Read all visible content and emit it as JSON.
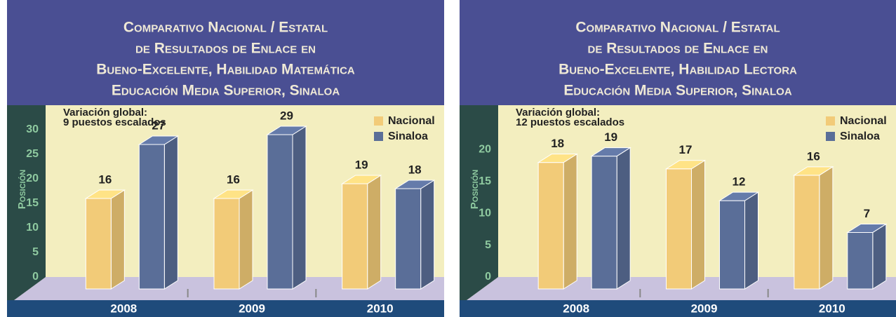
{
  "chart_data": [
    {
      "type": "bar3d",
      "title": [
        "Comparativo Nacional / Estatal",
        "de Resultados de Enlace en",
        "Bueno-Excelente, Habilidad Matemática",
        "Educación Media Superior, Sinaloa"
      ],
      "annotation": [
        "Variación global:",
        "9 puestos escalados"
      ],
      "y_label": "Posición",
      "categories": [
        "2008",
        "2009",
        "2010"
      ],
      "series": [
        {
          "name": "Nacional",
          "color": "#f2cb78",
          "values": [
            16,
            16,
            19
          ]
        },
        {
          "name": "Sinaloa",
          "color": "#5a6e98",
          "values": [
            27,
            29,
            18
          ]
        }
      ],
      "ylim": [
        0,
        35
      ],
      "yticks": [
        0,
        5,
        10,
        15,
        20,
        25,
        30
      ],
      "legend": "top-right"
    },
    {
      "type": "bar3d",
      "title": [
        "Comparativo Nacional / Estatal",
        "de Resultados de Enlace en",
        "Bueno-Excelente, Habilidad Lectora",
        "Educación Media Superior, Sinaloa"
      ],
      "annotation": [
        "Variación global:",
        "12 puestos escalados"
      ],
      "y_label": "Posición",
      "categories": [
        "2008",
        "2009",
        "2010"
      ],
      "series": [
        {
          "name": "Nacional",
          "color": "#f2cb78",
          "values": [
            18,
            17,
            16
          ]
        },
        {
          "name": "Sinaloa",
          "color": "#5a6e98",
          "values": [
            19,
            12,
            7
          ]
        }
      ],
      "ylim": [
        0,
        27
      ],
      "yticks": [
        0,
        5,
        10,
        15,
        20
      ],
      "legend": "top-right"
    }
  ]
}
